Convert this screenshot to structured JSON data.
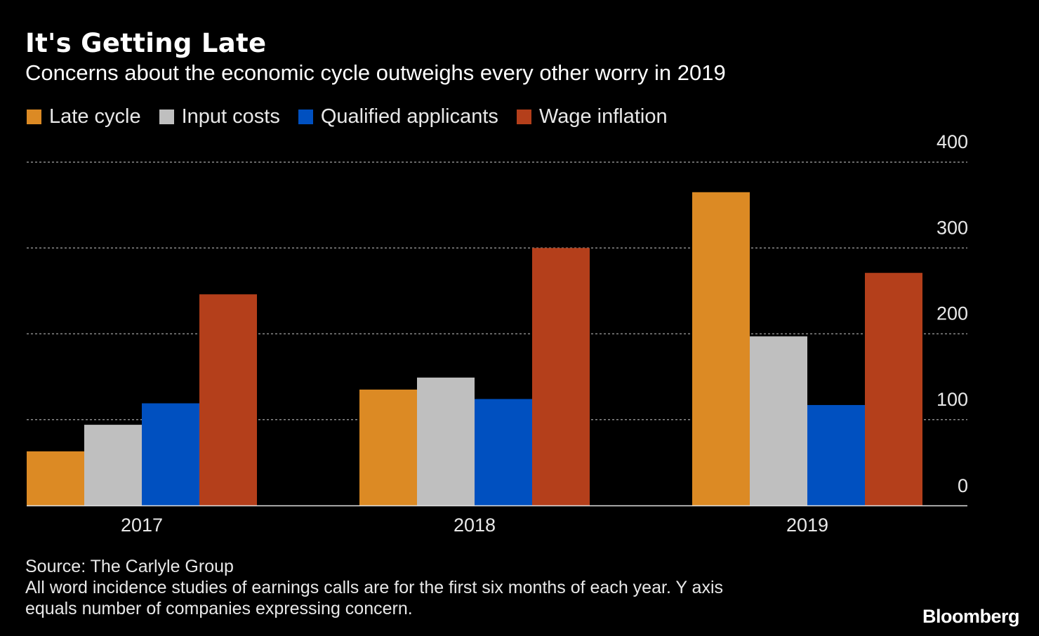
{
  "header": {
    "title": "It's Getting Late",
    "subtitle": "Concerns about the economic cycle outweighs every other worry in 2019"
  },
  "legend": [
    {
      "label": "Late cycle",
      "color": "#dc8a24"
    },
    {
      "label": "Input costs",
      "color": "#bfbfbf"
    },
    {
      "label": "Qualified applicants",
      "color": "#0050c0"
    },
    {
      "label": "Wage inflation",
      "color": "#b43f1b"
    }
  ],
  "chart_data": {
    "type": "bar",
    "title": "It's Getting Late",
    "subtitle": "Concerns about the economic cycle outweighs every other worry in 2019",
    "categories": [
      "2017",
      "2018",
      "2019"
    ],
    "series": [
      {
        "name": "Late cycle",
        "color": "#dc8a24",
        "values": [
          63,
          135,
          365
        ]
      },
      {
        "name": "Input costs",
        "color": "#bfbfbf",
        "values": [
          94,
          149,
          197
        ]
      },
      {
        "name": "Qualified applicants",
        "color": "#0050c0",
        "values": [
          119,
          124,
          117
        ]
      },
      {
        "name": "Wage inflation",
        "color": "#b43f1b",
        "values": [
          246,
          300,
          271
        ]
      }
    ],
    "ylim": [
      0,
      400
    ],
    "yticks": [
      0,
      100,
      200,
      300,
      400
    ],
    "y_axis_position": "right",
    "grid": true,
    "legend_position": "top-left"
  },
  "footer": {
    "source": "Source: The Carlyle Group",
    "note_line1": "All word incidence studies of earnings calls are for the first six months of each year. Y axis",
    "note_line2": "equals number of companies expressing concern."
  },
  "brand": {
    "logo_text": "Bloomberg"
  }
}
